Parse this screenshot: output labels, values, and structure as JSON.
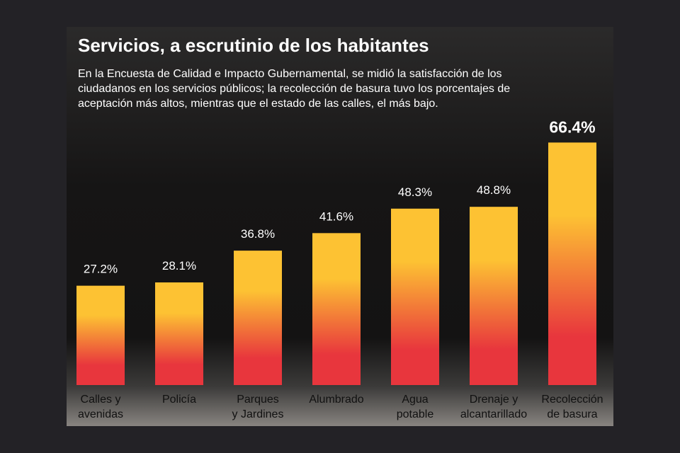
{
  "header": {
    "title": "Servicios, a escrutinio de los habitantes",
    "subtitle": "En la Encuesta de Calidad e Impacto Gubernamental, se midió la satisfacción de los ciudadanos en los servicios públicos; la recolección de basura tuvo los porcentajes de aceptación más altos, mientras que el estado de las calles, el más bajo."
  },
  "colors": {
    "bar_top": "#fdc233",
    "bar_bottom": "#e8363d",
    "label_text": "#ffffff"
  },
  "chart_data": {
    "type": "bar",
    "title": "Servicios, a escrutinio de los habitantes",
    "xlabel": "",
    "ylabel": "",
    "ylim": [
      0,
      70
    ],
    "grid": false,
    "unit": "%",
    "categories": [
      [
        "Calles y",
        "avenidas"
      ],
      [
        "Policía"
      ],
      [
        "Parques",
        "y Jardines"
      ],
      [
        "Alumbrado"
      ],
      [
        "Agua",
        "potable"
      ],
      [
        "Drenaje y",
        "alcantarillado"
      ],
      [
        "Recolección",
        "de basura"
      ]
    ],
    "values": [
      27.2,
      28.1,
      36.8,
      41.6,
      48.3,
      48.8,
      66.4
    ],
    "labels": [
      "27.2%",
      "28.1%",
      "36.8%",
      "41.6%",
      "48.3%",
      "48.8%",
      "66.4%"
    ],
    "highlight_index": 6
  }
}
